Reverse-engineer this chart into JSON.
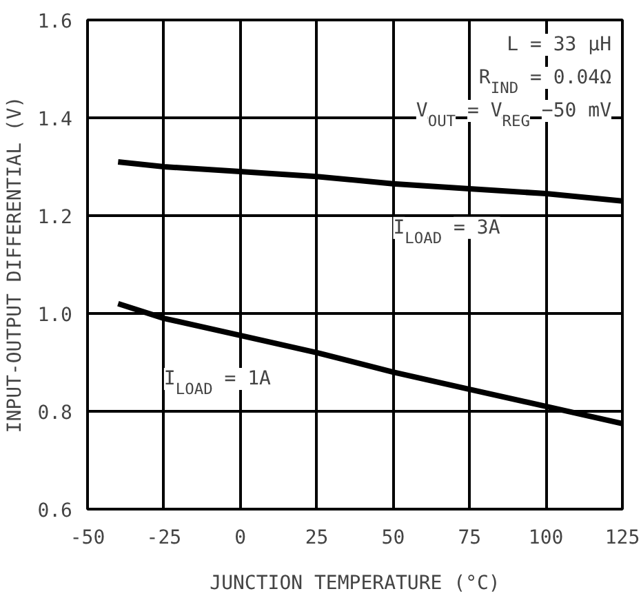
{
  "chart_data": {
    "type": "line",
    "xlabel": "JUNCTION TEMPERATURE (°C)",
    "ylabel": "INPUT-OUTPUT DIFFERENTIAL (V)",
    "annotations": [
      "L = 33 μH",
      "R$_{IND}$ = 0.04Ω",
      "V$_{OUT}$ = V$_{REG}$ −50 mV"
    ],
    "x": [
      -40,
      -25,
      0,
      25,
      50,
      75,
      100,
      125
    ],
    "series": [
      {
        "name": "I$_{LOAD}$ = 3A",
        "color": "#000000",
        "values": [
          1.31,
          1.3,
          1.29,
          1.28,
          1.265,
          1.255,
          1.245,
          1.23
        ]
      },
      {
        "name": "I$_{LOAD}$ = 1A",
        "color": "#000000",
        "values": [
          1.02,
          0.99,
          0.955,
          0.92,
          0.88,
          0.845,
          0.81,
          0.775
        ]
      }
    ],
    "xlim": [
      -50,
      125
    ],
    "ylim": [
      0.6,
      1.6
    ],
    "xticks": [
      -50,
      -25,
      0,
      25,
      50,
      75,
      100,
      125
    ],
    "yticks": [
      0.6,
      0.8,
      {
        "value": 1.0,
        "label": "1.0"
      },
      1.2,
      1.4,
      1.6
    ],
    "grid": true,
    "marker": "none",
    "line_style": "solid"
  }
}
